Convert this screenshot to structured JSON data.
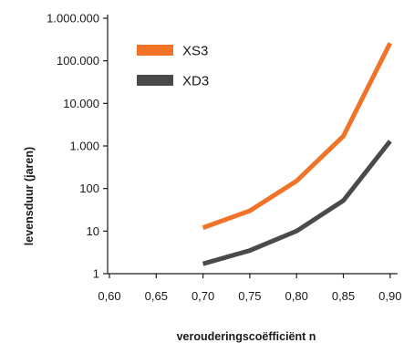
{
  "chart_data": {
    "type": "line",
    "xlabel": "verouderingscoëfficiënt n",
    "ylabel": "levensduur (jaren)",
    "x": [
      0.6,
      0.65,
      0.7,
      0.75,
      0.8,
      0.85,
      0.9
    ],
    "x_tick_labels": [
      "0,60",
      "0,65",
      "0,70",
      "0,75",
      "0,80",
      "0,85",
      "0,90"
    ],
    "y_scale": "log",
    "ylim": [
      1,
      1000000
    ],
    "y_ticks": [
      1,
      10,
      100,
      1000,
      10000,
      100000,
      1000000
    ],
    "y_tick_labels": [
      "1",
      "10",
      "100",
      "1.000",
      "10.000",
      "100.000",
      "1.000.000"
    ],
    "grid": false,
    "legend_position": "top-left",
    "series": [
      {
        "name": "XS3",
        "color": "#f07328",
        "x": [
          0.7,
          0.75,
          0.8,
          0.85,
          0.9
        ],
        "values": [
          12,
          30,
          150,
          1700,
          260000
        ]
      },
      {
        "name": "XD3",
        "color": "#4a4a4a",
        "x": [
          0.7,
          0.75,
          0.8,
          0.85,
          0.9
        ],
        "values": [
          1.7,
          3.5,
          10,
          52,
          1300
        ]
      }
    ]
  }
}
